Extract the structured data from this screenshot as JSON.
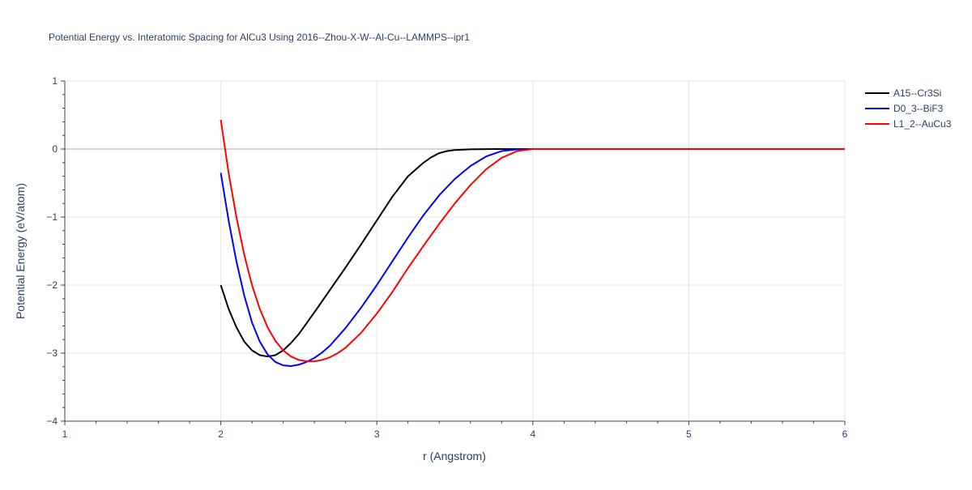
{
  "chart_data": {
    "type": "line",
    "title": "Potential Energy vs. Interatomic Spacing for AlCu3 Using 2016--Zhou-X-W--Al-Cu--LAMMPS--ipr1",
    "xlabel": "r (Angstrom)",
    "ylabel": "Potential Energy (eV/atom)",
    "xlim": [
      1,
      6
    ],
    "ylim": [
      -4,
      1
    ],
    "xticks": [
      1,
      2,
      3,
      4,
      5,
      6
    ],
    "yticks": [
      1,
      0,
      -1,
      -2,
      -3,
      -4
    ],
    "ytick_labels": [
      "1",
      "0",
      "−1",
      "−2",
      "−3",
      "−4"
    ],
    "grid": true,
    "legend_position": "top-right",
    "series": [
      {
        "name": "A15--Cr3Si",
        "color": "#000000",
        "x": [
          2.0,
          2.05,
          2.1,
          2.15,
          2.2,
          2.25,
          2.3,
          2.35,
          2.4,
          2.45,
          2.5,
          2.6,
          2.7,
          2.8,
          2.9,
          3.0,
          3.1,
          3.2,
          3.3,
          3.35,
          3.4,
          3.45,
          3.5,
          3.6,
          3.7,
          3.8,
          3.9,
          4.0,
          4.5,
          5.0,
          5.5,
          6.0
        ],
        "y": [
          -2.0,
          -2.35,
          -2.62,
          -2.83,
          -2.96,
          -3.03,
          -3.05,
          -3.03,
          -2.96,
          -2.85,
          -2.72,
          -2.4,
          -2.07,
          -1.74,
          -1.4,
          -1.05,
          -0.7,
          -0.4,
          -0.2,
          -0.12,
          -0.06,
          -0.03,
          -0.015,
          -0.004,
          -0.001,
          0.0,
          0.0,
          0.0,
          0.0,
          0.0,
          0.0,
          0.0
        ]
      },
      {
        "name": "D0_3--BiF3",
        "color": "#0000ff",
        "x": [
          2.0,
          2.05,
          2.1,
          2.15,
          2.2,
          2.25,
          2.3,
          2.35,
          2.4,
          2.45,
          2.5,
          2.55,
          2.6,
          2.65,
          2.7,
          2.8,
          2.9,
          3.0,
          3.1,
          3.2,
          3.3,
          3.4,
          3.5,
          3.6,
          3.7,
          3.8,
          3.9,
          4.0,
          4.5,
          5.0,
          5.5,
          6.0
        ],
        "y": [
          -0.35,
          -1.05,
          -1.65,
          -2.15,
          -2.55,
          -2.83,
          -3.02,
          -3.13,
          -3.18,
          -3.19,
          -3.17,
          -3.13,
          -3.07,
          -2.99,
          -2.89,
          -2.63,
          -2.33,
          -2.0,
          -1.65,
          -1.3,
          -0.97,
          -0.68,
          -0.44,
          -0.25,
          -0.11,
          -0.03,
          -0.005,
          0.0,
          0.0,
          0.0,
          0.0,
          0.0
        ]
      },
      {
        "name": "L1_2--AuCu3",
        "color": "#ff0000",
        "x": [
          2.0,
          2.05,
          2.1,
          2.15,
          2.2,
          2.25,
          2.3,
          2.35,
          2.4,
          2.45,
          2.5,
          2.55,
          2.6,
          2.65,
          2.7,
          2.75,
          2.8,
          2.9,
          3.0,
          3.1,
          3.2,
          3.3,
          3.4,
          3.5,
          3.6,
          3.7,
          3.8,
          3.9,
          4.0,
          4.5,
          5.0,
          5.5,
          6.0
        ],
        "y": [
          0.43,
          -0.35,
          -1.0,
          -1.55,
          -2.0,
          -2.35,
          -2.62,
          -2.82,
          -2.96,
          -3.05,
          -3.1,
          -3.12,
          -3.12,
          -3.1,
          -3.06,
          -3.0,
          -2.92,
          -2.7,
          -2.42,
          -2.1,
          -1.75,
          -1.42,
          -1.1,
          -0.8,
          -0.53,
          -0.3,
          -0.13,
          -0.03,
          0.0,
          0.0,
          0.0,
          0.0,
          0.0
        ]
      }
    ]
  }
}
